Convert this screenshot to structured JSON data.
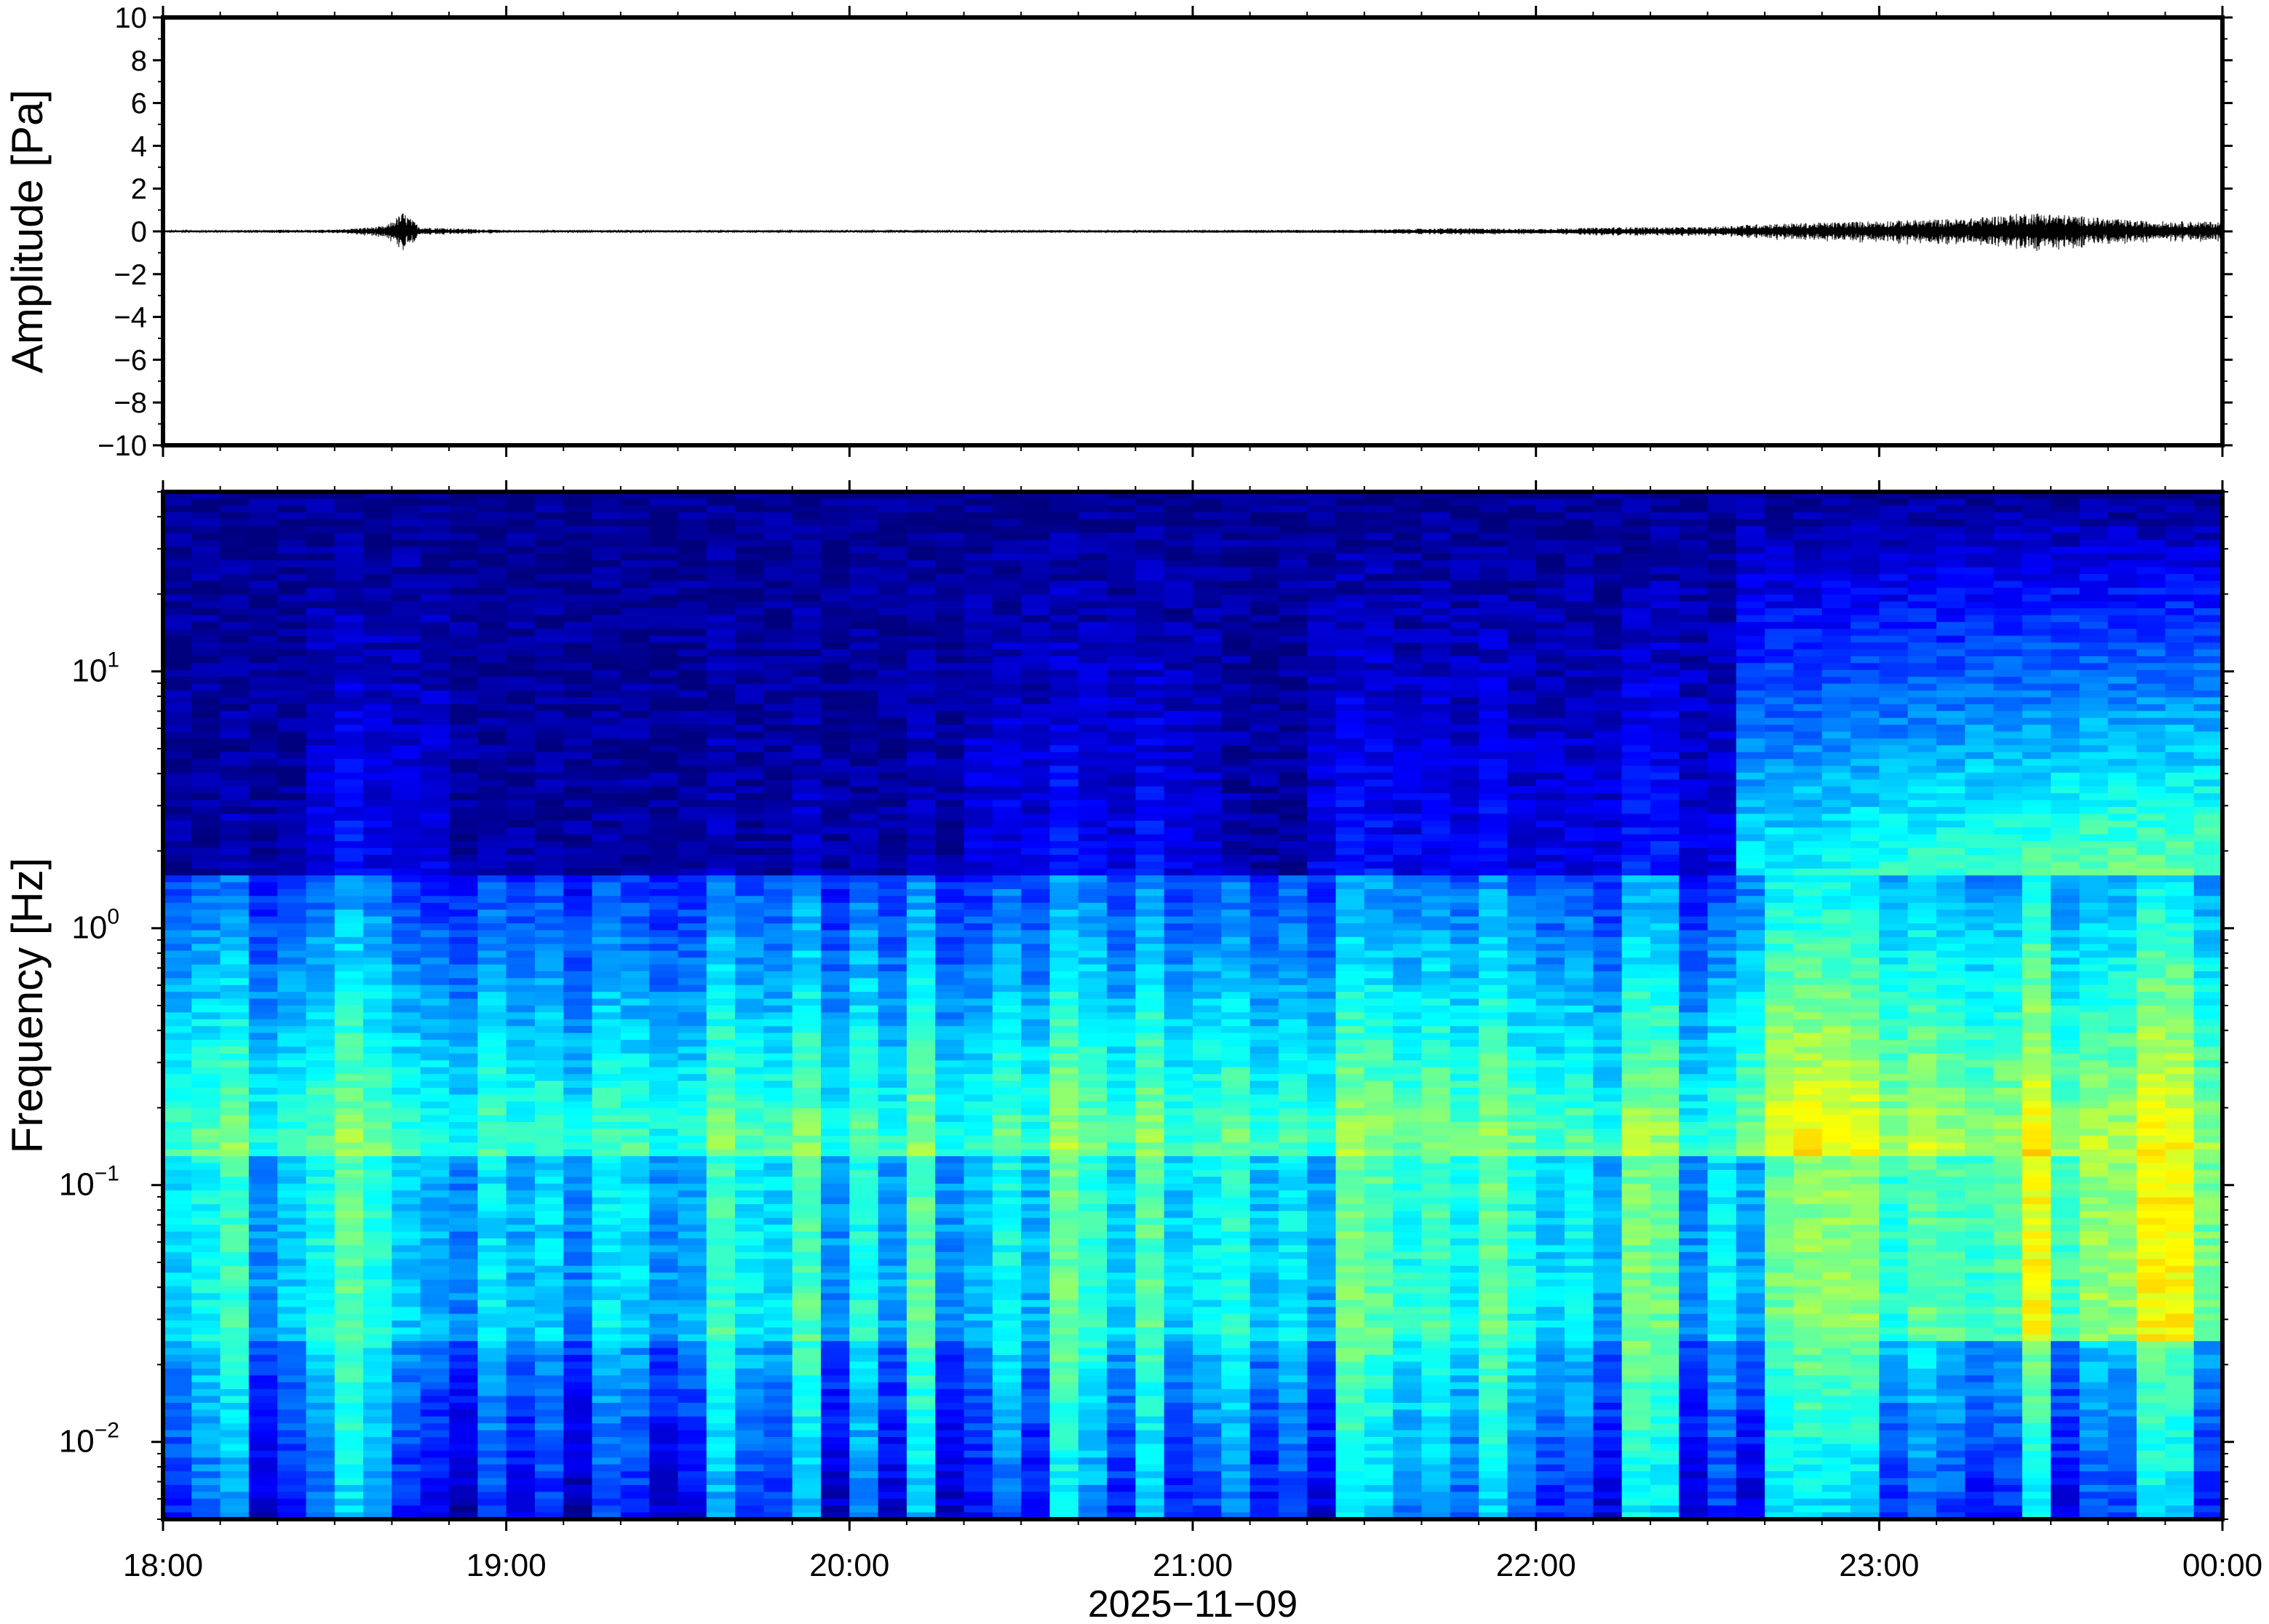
{
  "chart_data": [
    {
      "type": "line",
      "panel": "waveform",
      "ylabel": "Amplitude [Pa]",
      "ylim": [
        -10,
        10
      ],
      "yticks": [
        "10",
        "8",
        "6",
        "4",
        "2",
        "0",
        "−2",
        "−4",
        "−6",
        "−8",
        "−10"
      ],
      "ytick_values": [
        10,
        8,
        6,
        4,
        2,
        0,
        -2,
        -4,
        -6,
        -8,
        -10
      ],
      "x_range_hours": [
        18,
        24
      ],
      "envelope": {
        "x_hours": [
          18.0,
          18.5,
          18.65,
          18.7,
          18.75,
          19.0,
          20.0,
          21.0,
          21.5,
          21.75,
          22.0,
          22.25,
          22.5,
          22.65,
          22.8,
          23.0,
          23.25,
          23.45,
          23.6,
          23.75,
          24.0
        ],
        "amplitude": [
          0.05,
          0.08,
          0.25,
          0.9,
          0.2,
          0.06,
          0.05,
          0.06,
          0.08,
          0.15,
          0.12,
          0.2,
          0.2,
          0.35,
          0.4,
          0.5,
          0.6,
          0.9,
          0.7,
          0.5,
          0.45
        ]
      },
      "line_color": "#000000"
    },
    {
      "type": "heatmap",
      "panel": "spectrogram",
      "ylabel": "Frequency [Hz]",
      "yscale": "log",
      "ylim": [
        0.005,
        50
      ],
      "yticks": [
        {
          "value": 10,
          "base": "10",
          "exp": "1"
        },
        {
          "value": 1,
          "base": "10",
          "exp": "0"
        },
        {
          "value": 0.1,
          "base": "10",
          "exp": "−1"
        },
        {
          "value": 0.01,
          "base": "10",
          "exp": "−2"
        }
      ],
      "colormap": [
        "#00007f",
        "#0000ff",
        "#007fff",
        "#00ffff",
        "#7fff7f",
        "#ffff00",
        "#ff7f00"
      ],
      "xlabel": "2025−11−09",
      "xticks": [
        "18:00",
        "19:00",
        "20:00",
        "21:00",
        "22:00",
        "23:00",
        "00:00"
      ],
      "xtick_hours": [
        18,
        19,
        20,
        21,
        22,
        23,
        24
      ]
    }
  ]
}
